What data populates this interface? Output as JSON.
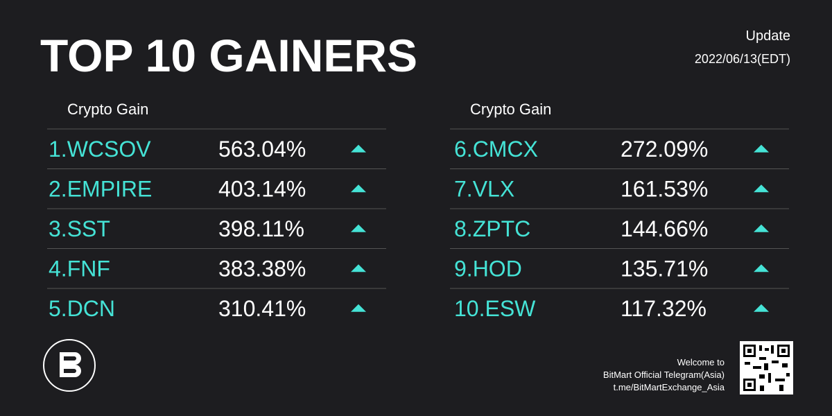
{
  "header": {
    "title": "TOP 10 GAINERS",
    "update_label": "Update",
    "update_date": "2022/06/13(EDT)"
  },
  "tables": [
    {
      "header": "Crypto Gain",
      "rows": [
        [
          "1.WCSOV",
          "563.04%"
        ],
        [
          "2.EMPIRE",
          "403.14%"
        ],
        [
          "3.SST",
          "398.11%"
        ],
        [
          "4.FNF",
          "383.38%"
        ],
        [
          "5.DCN",
          "310.41%"
        ]
      ]
    },
    {
      "header": "Crypto Gain",
      "rows": [
        [
          "6.CMCX",
          "272.09%"
        ],
        [
          "7.VLX",
          "161.53%"
        ],
        [
          "8.ZPTC",
          "144.66%"
        ],
        [
          "9.HOD",
          "135.71%"
        ],
        [
          "10.ESW",
          "117.32%"
        ]
      ]
    }
  ],
  "footer": {
    "lines": [
      "Welcome to",
      "BitMart Official Telegram(Asia)",
      "t.me/BitMartExchange_Asia"
    ]
  }
}
